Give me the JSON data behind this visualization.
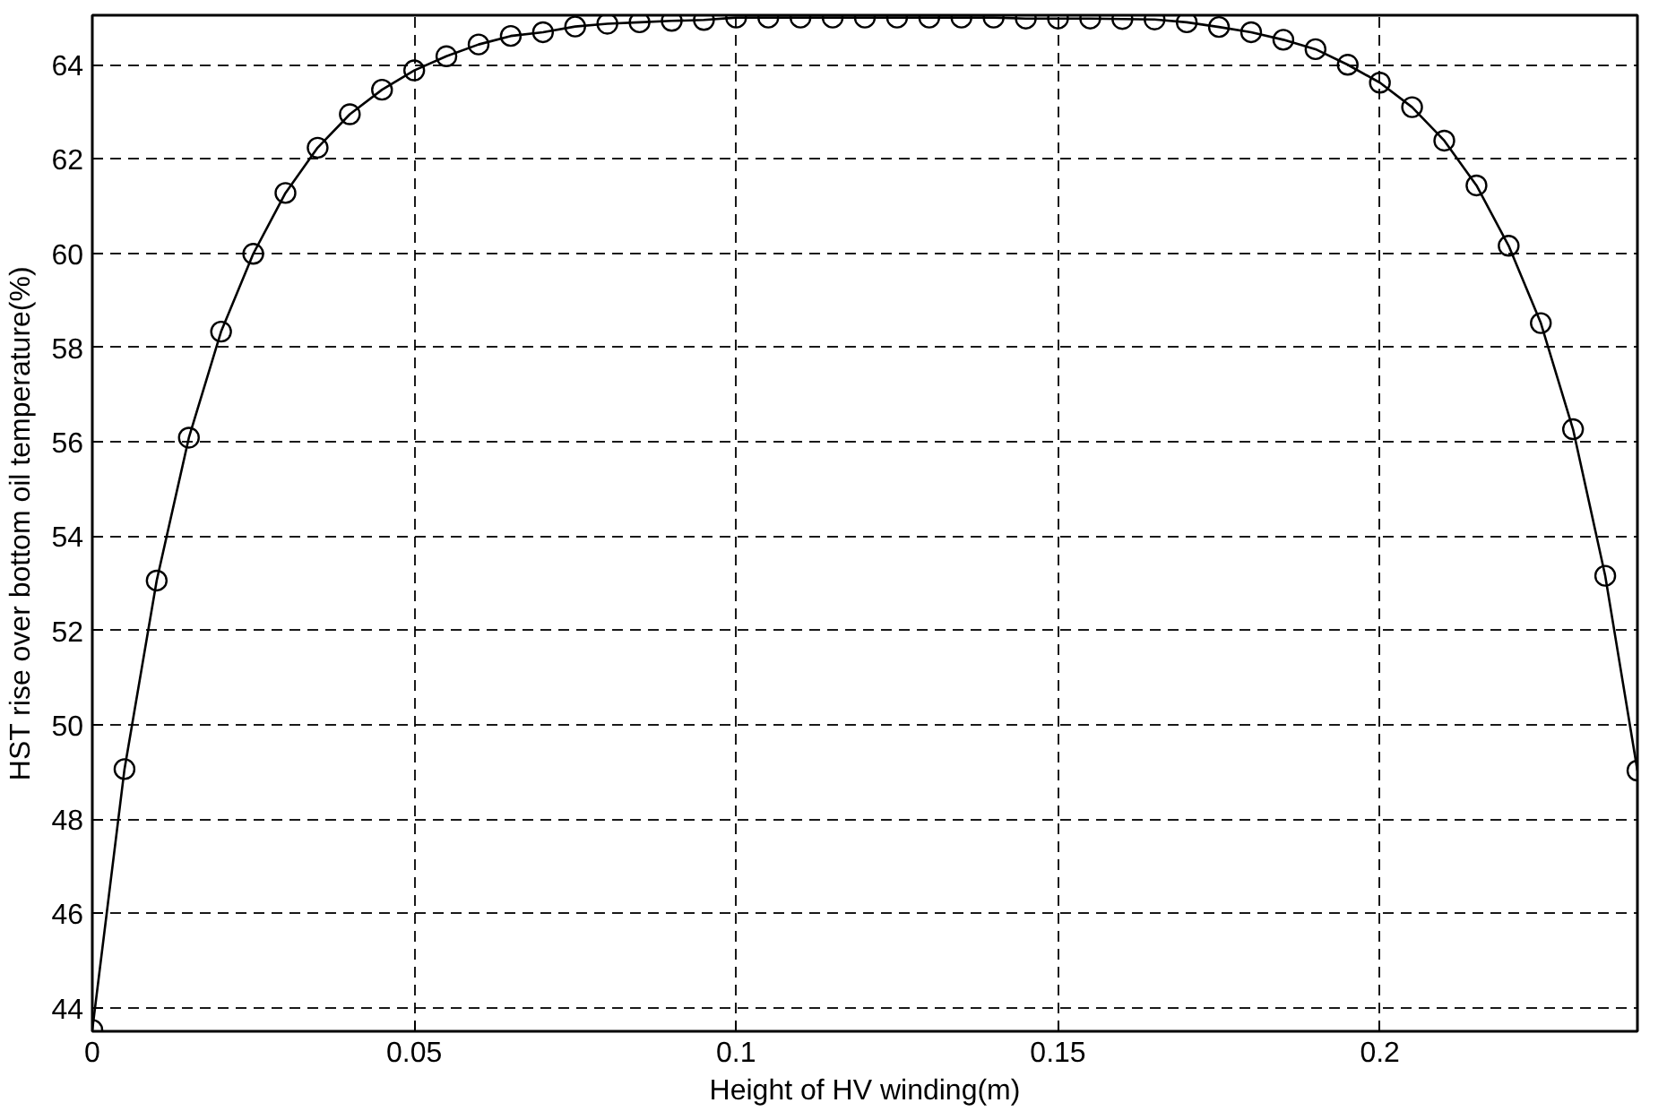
{
  "chart_data": {
    "type": "line",
    "xlabel": "Height of HV winding(m)",
    "ylabel": "HST rise over bottom oil temperature(%)",
    "x": [
      0,
      0.005,
      0.01,
      0.015,
      0.02,
      0.025,
      0.03,
      0.035,
      0.04,
      0.045,
      0.05,
      0.055,
      0.06,
      0.065,
      0.07,
      0.075,
      0.08,
      0.085,
      0.09,
      0.095,
      0.1,
      0.105,
      0.11,
      0.115,
      0.12,
      0.125,
      0.13,
      0.135,
      0.14,
      0.145,
      0.15,
      0.155,
      0.16,
      0.165,
      0.17,
      0.175,
      0.18,
      0.185,
      0.19,
      0.195,
      0.2,
      0.205,
      0.21,
      0.215,
      0.22,
      0.225,
      0.23,
      0.235,
      0.24
    ],
    "series": [
      {
        "color": "#000000",
        "values": [
          43.53,
          49.06,
          53.06,
          56.09,
          58.34,
          59.99,
          61.28,
          62.24,
          62.95,
          63.47,
          63.88,
          64.18,
          64.43,
          64.61,
          64.69,
          64.81,
          64.87,
          64.9,
          64.93,
          64.95,
          65.0,
          65.0,
          65.0,
          65.0,
          65.0,
          65.0,
          65.0,
          65.0,
          65.0,
          64.98,
          64.98,
          64.98,
          64.97,
          64.96,
          64.9,
          64.8,
          64.69,
          64.53,
          64.33,
          64.0,
          63.62,
          63.1,
          62.39,
          61.44,
          60.16,
          58.52,
          56.27,
          53.16,
          49.03
        ]
      }
    ],
    "xlim": [
      0,
      0.24
    ],
    "ylim": [
      43.5,
      65.05
    ],
    "xticks": [
      0,
      0.05,
      0.1,
      0.15,
      0.2
    ],
    "yticks": [
      44,
      46,
      48,
      50,
      52,
      54,
      56,
      58,
      60,
      62,
      64
    ],
    "grid": true,
    "marker": "circle",
    "line_style": "solid"
  }
}
